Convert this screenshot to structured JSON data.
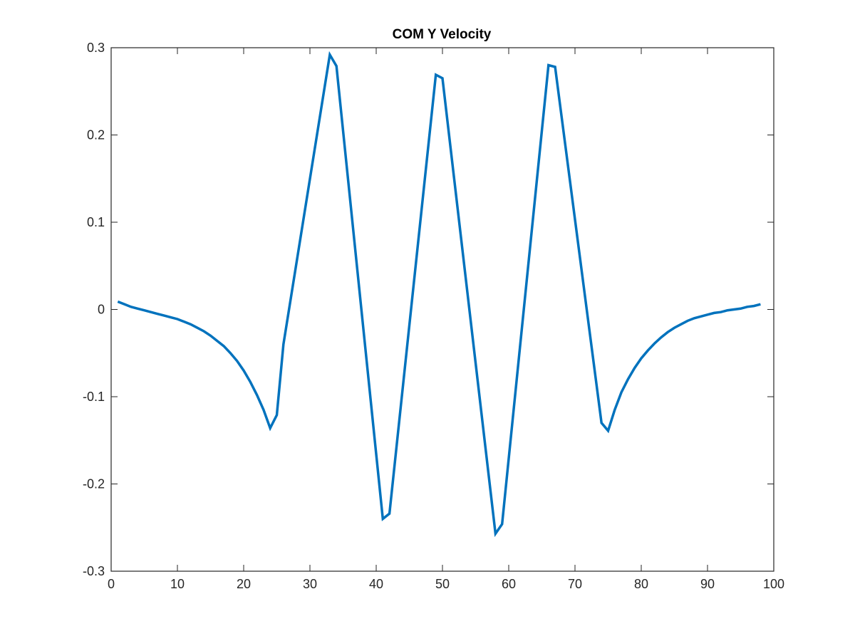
{
  "chart_data": {
    "type": "line",
    "title": "COM Y Velocity",
    "xlabel": "",
    "ylabel": "",
    "xlim": [
      0,
      100
    ],
    "ylim": [
      -0.3,
      0.3
    ],
    "x_ticks": [
      0,
      10,
      20,
      30,
      40,
      50,
      60,
      70,
      80,
      90,
      100
    ],
    "y_ticks": [
      -0.3,
      -0.2,
      -0.1,
      0,
      0.1,
      0.2,
      0.3
    ],
    "x_tick_labels": [
      "0",
      "10",
      "20",
      "30",
      "40",
      "50",
      "60",
      "70",
      "80",
      "90",
      "100"
    ],
    "y_tick_labels": [
      "-0.3",
      "-0.2",
      "-0.1",
      "0",
      "0.1",
      "0.2",
      "0.3"
    ],
    "grid": false,
    "legend": "none",
    "series": [
      {
        "color": "#0072bd",
        "x": [
          1,
          2,
          3,
          4,
          5,
          6,
          7,
          8,
          9,
          10,
          11,
          12,
          13,
          14,
          15,
          16,
          17,
          18,
          19,
          20,
          21,
          22,
          23,
          24,
          25,
          26,
          33,
          34,
          41,
          42,
          49,
          50,
          58,
          59,
          66,
          67,
          74,
          75,
          76,
          77,
          78,
          79,
          80,
          81,
          82,
          83,
          84,
          85,
          86,
          87,
          88,
          89,
          90,
          91,
          92,
          93,
          94,
          95,
          96,
          97,
          98
        ],
        "y": [
          0.009,
          0.006,
          0.003,
          0.001,
          -0.001,
          -0.003,
          -0.005,
          -0.007,
          -0.009,
          -0.011,
          -0.014,
          -0.017,
          -0.021,
          -0.025,
          -0.03,
          -0.036,
          -0.042,
          -0.05,
          -0.059,
          -0.07,
          -0.083,
          -0.098,
          -0.115,
          -0.136,
          -0.121,
          -0.04,
          0.292,
          0.279,
          -0.24,
          -0.234,
          0.269,
          0.265,
          -0.257,
          -0.246,
          0.28,
          0.278,
          -0.13,
          -0.139,
          -0.115,
          -0.095,
          -0.08,
          -0.067,
          -0.056,
          -0.047,
          -0.039,
          -0.032,
          -0.026,
          -0.021,
          -0.017,
          -0.013,
          -0.01,
          -0.008,
          -0.006,
          -0.004,
          -0.003,
          -0.001,
          0.0,
          0.001,
          0.003,
          0.004,
          0.006
        ]
      }
    ]
  }
}
